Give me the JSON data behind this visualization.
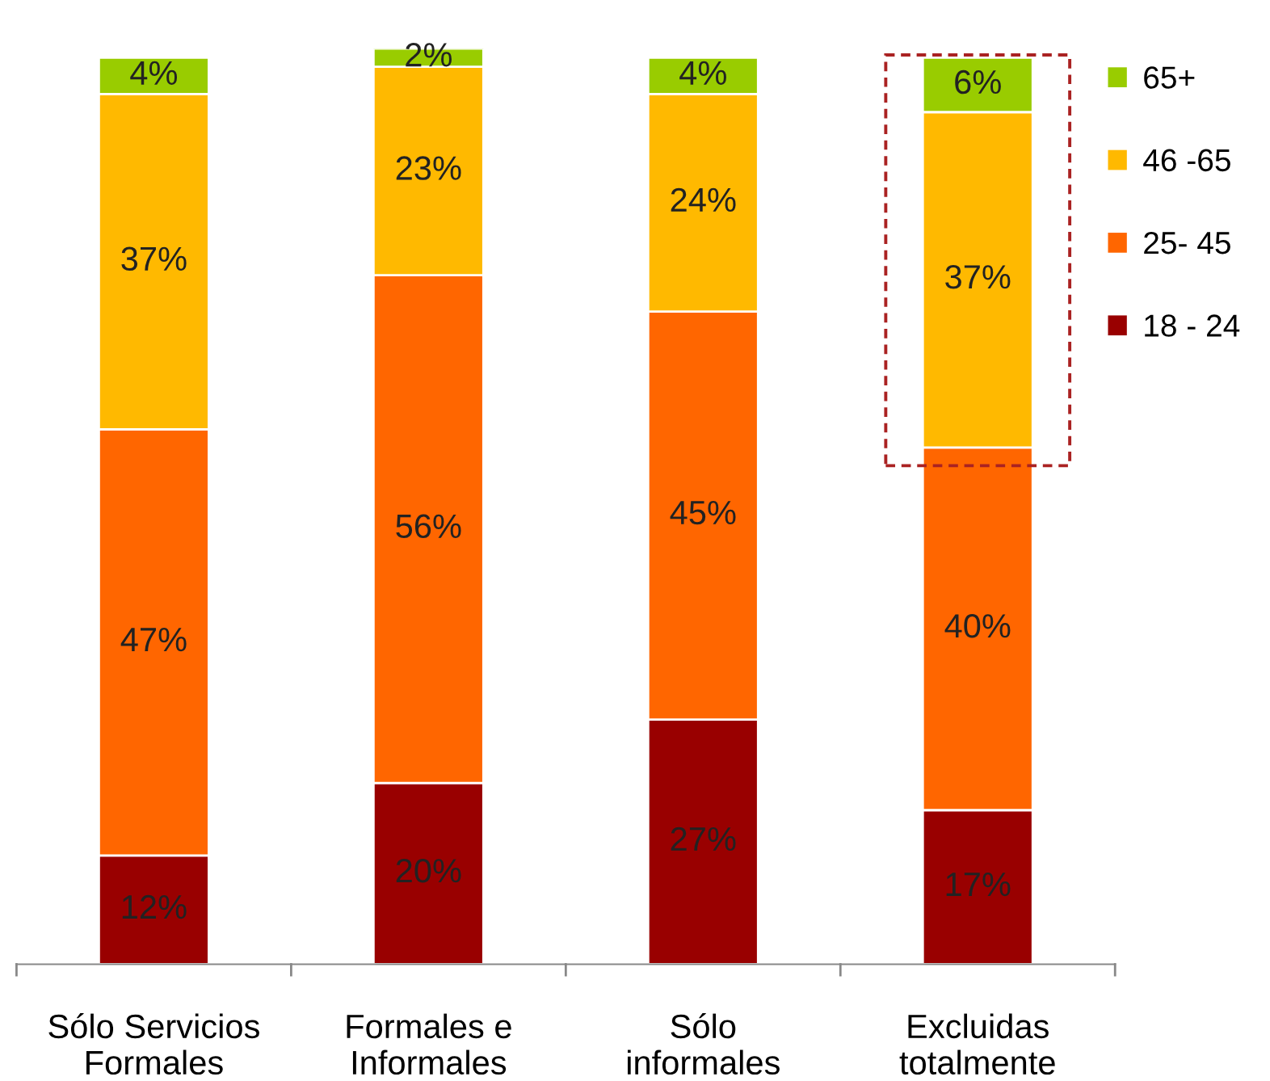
{
  "chart_data": {
    "type": "bar",
    "stacked": true,
    "ylim": [
      0,
      101
    ],
    "tick_labels": "x",
    "categories": [
      "Sólo Servicios\nFormales",
      "Formales e\nInformales",
      "Sólo\ninformales",
      "Excluidas\ntotalmente"
    ],
    "series": [
      {
        "name": "18 - 24",
        "color": "#990000",
        "values": [
          12,
          20,
          27,
          17
        ],
        "value_labels": [
          "12%",
          "20%",
          "27%",
          "17%"
        ]
      },
      {
        "name": "25- 45",
        "color": "#ff6600",
        "values": [
          47,
          56,
          45,
          40
        ],
        "value_labels": [
          "47%",
          "56%",
          "45%",
          "40%"
        ]
      },
      {
        "name": "46 -65",
        "color": "#ffb900",
        "values": [
          37,
          23,
          24,
          37
        ],
        "value_labels": [
          "37%",
          "23%",
          "24%",
          "37%"
        ]
      },
      {
        "name": "65+",
        "color": "#99cc00",
        "values": [
          4,
          2,
          4,
          6
        ],
        "value_labels": [
          "4%",
          "2%",
          "4%",
          "6%"
        ]
      }
    ],
    "legend": "right",
    "grid": false
  }
}
